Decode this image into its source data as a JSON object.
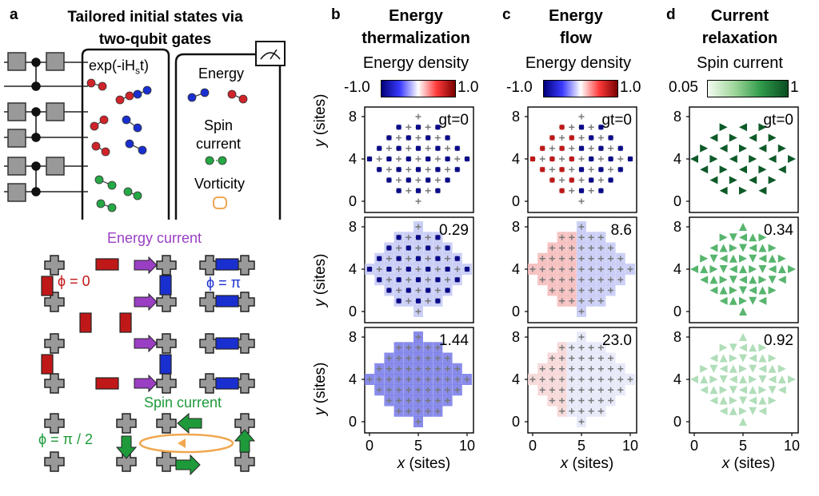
{
  "panel_a": {
    "letter": "a",
    "title_line1": "Tailored initial states via",
    "title_line2": "two-qubit gates",
    "evolution": "exp(-iH",
    "evolution_sub": "s",
    "evolution_end": "t)",
    "obs_energy": "Energy",
    "obs_spin1": "Spin",
    "obs_spin2": "current",
    "obs_vorticity": "Vorticity",
    "energy_current": "Energy current",
    "phi_zero": "ϕ = 0",
    "phi_pi": "ϕ = π",
    "spin_current": "Spin current",
    "phi_half_pi": "ϕ = π / 2"
  },
  "panel_b": {
    "letter": "b",
    "title_line1": "Energy",
    "title_line2": "thermalization",
    "cb_title": "Energy density",
    "cb_min": "-1.0",
    "cb_max": "1.0",
    "times": [
      "gt=0",
      "0.29",
      "1.44"
    ]
  },
  "panel_c": {
    "letter": "c",
    "title_line1": "Energy",
    "title_line2": "flow",
    "cb_title": "Energy density",
    "cb_min": "-1.0",
    "cb_max": "1.0",
    "times": [
      "gt=0",
      "8.6",
      "23.0"
    ]
  },
  "panel_d": {
    "letter": "d",
    "title_line1": "Current",
    "title_line2": "relaxation",
    "cb_title": "Spin current",
    "cb_min": "0.05",
    "cb_max": "1",
    "times": [
      "gt=0",
      "0.34",
      "0.92"
    ]
  },
  "axes": {
    "ylabel_var": "y",
    "ylabel_unit": "(sites)",
    "xlabel_var": "x",
    "xlabel_unit": "(sites)",
    "yticks": [
      "8",
      "4",
      "0"
    ],
    "xticks": [
      "0",
      "5",
      "10"
    ]
  },
  "colors": {
    "blue": "#1a1aa0",
    "red": "#c01818",
    "green": "#1e9a3a",
    "purple": "#9a3fc4",
    "orange": "#f0a850",
    "gray": "#a0a0a0"
  }
}
